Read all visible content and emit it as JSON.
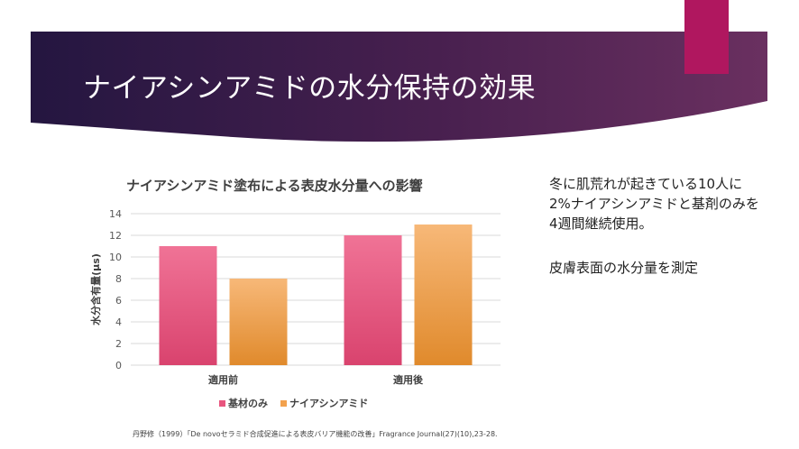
{
  "slide": {
    "title": "ナイアシンアミドの水分保持の効果",
    "side_text": {
      "lines": [
        "冬に肌荒れが起きている10人に",
        "2%ナイアシンアミドと基剤のみを",
        "4週間継続使用。"
      ],
      "line2": "皮膚表面の水分量を測定"
    },
    "citation": "丹野修（1999）「De novoセラミド合成促進による表皮バリア機能の改善」Fragrance Journal(27)(10),23-28.",
    "colors": {
      "banner_dark": "#2b1a4a",
      "banner_mid": "#5e2a5c",
      "accent": "#b0175f"
    }
  },
  "chart_data": {
    "type": "bar",
    "title": "ナイアシンアミド塗布による表皮水分量への影響",
    "categories": [
      "適用前",
      "適用後"
    ],
    "series": [
      {
        "name": "基材のみ",
        "values": [
          11,
          12
        ],
        "color": "#e8557f"
      },
      {
        "name": "ナイアシンアミド",
        "values": [
          8,
          13
        ],
        "color": "#f2a14d"
      }
    ],
    "ylabel": "水分含有量(μs)",
    "ylim": [
      0,
      14
    ],
    "yticks": [
      0,
      2,
      4,
      6,
      8,
      10,
      12,
      14
    ],
    "grid": true,
    "legend": "bottom"
  }
}
